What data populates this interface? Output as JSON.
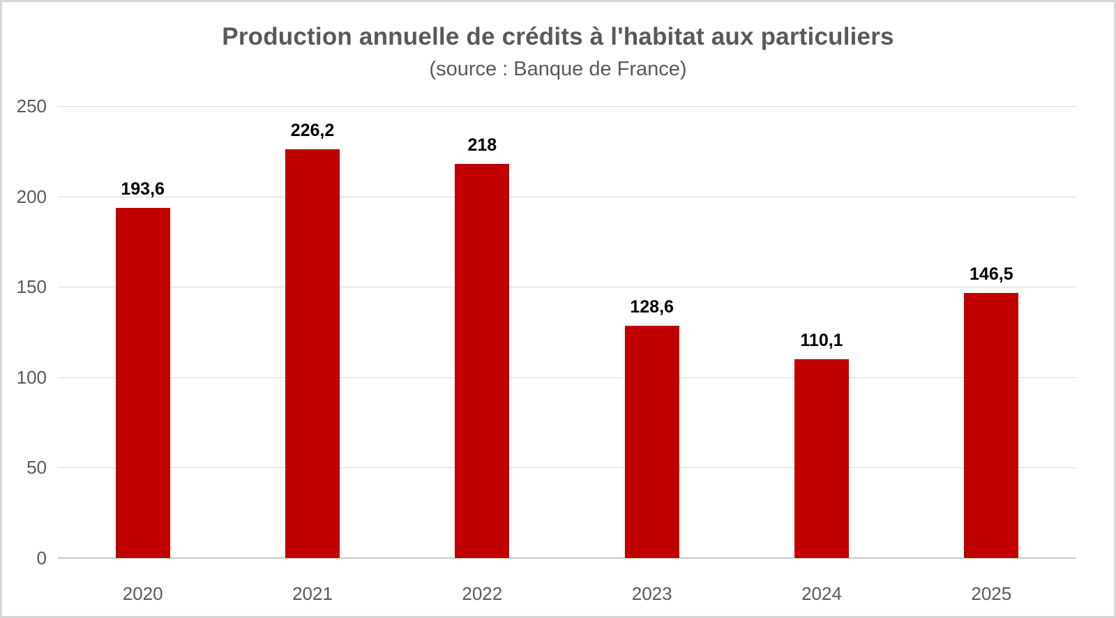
{
  "chart_data": {
    "type": "bar",
    "title": "Production annuelle de crédits à l'habitat aux particuliers",
    "subtitle": "(source : Banque de France)",
    "categories": [
      "2020",
      "2021",
      "2022",
      "2023",
      "2024",
      "2025"
    ],
    "values": [
      193.6,
      226.2,
      218,
      128.6,
      110.1,
      146.5
    ],
    "value_labels": [
      "193,6",
      "226,2",
      "218",
      "128,6",
      "110,1",
      "146,5"
    ],
    "ylim": [
      0,
      250
    ],
    "yticks": [
      0,
      50,
      100,
      150,
      200,
      250
    ],
    "ytick_labels": [
      "0",
      "50",
      "100",
      "150",
      "200",
      "250"
    ],
    "grid": true,
    "legend_position": "none",
    "colors": {
      "bar": "#c00000",
      "title_text": "#595959",
      "subtitle_text": "#595959",
      "axis_tick_text": "#595959",
      "gridline": "#d9d9d9",
      "axis_line": "#c6c6c6",
      "value_label_text": "#000000",
      "frame_border": "#d6d6d6",
      "background": "#ffffff"
    }
  }
}
